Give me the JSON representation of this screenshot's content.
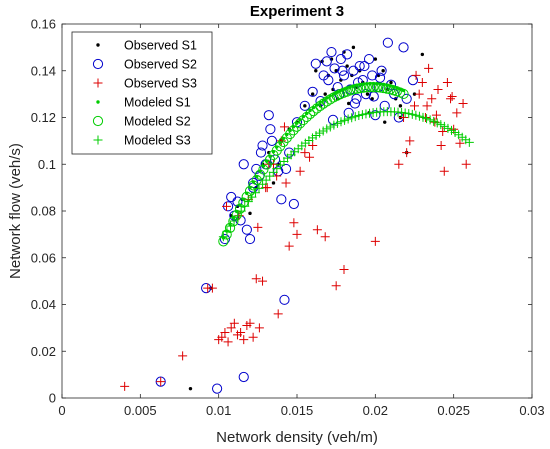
{
  "chart_data": {
    "type": "scatter",
    "title": "Experiment 3",
    "xlabel": "Network density (veh/m)",
    "ylabel": "Network flow (veh/s)",
    "xlim": [
      0,
      0.03
    ],
    "ylim": [
      0,
      0.16
    ],
    "xticks": [
      "0",
      "0.005",
      "0.01",
      "0.015",
      "0.02",
      "0.025",
      "0.03"
    ],
    "yticks": [
      "0",
      "0.02",
      "0.04",
      "0.06",
      "0.08",
      "0.1",
      "0.12",
      "0.14",
      "0.16"
    ],
    "grid": false,
    "legend_position": "top-left",
    "series": [
      {
        "name": "Observed S1",
        "marker": "dot",
        "color": "#000000",
        "x": [
          0.0082,
          0.0095,
          0.0108,
          0.0112,
          0.0115,
          0.012,
          0.0124,
          0.0128,
          0.0132,
          0.0135,
          0.0138,
          0.014,
          0.0145,
          0.015,
          0.0155,
          0.016,
          0.0162,
          0.0165,
          0.0168,
          0.017,
          0.0172,
          0.0175,
          0.0178,
          0.018,
          0.0182,
          0.0185,
          0.0188,
          0.019,
          0.0192,
          0.0195,
          0.0198,
          0.02,
          0.0202,
          0.0205,
          0.0208,
          0.021,
          0.0213,
          0.0216,
          0.022,
          0.0225,
          0.023,
          0.0186,
          0.0176,
          0.0166,
          0.0196,
          0.0206,
          0.0216,
          0.0183,
          0.0173
        ],
        "y": [
          0.004,
          0.047,
          0.078,
          0.082,
          0.085,
          0.079,
          0.09,
          0.1,
          0.105,
          0.092,
          0.1,
          0.11,
          0.115,
          0.118,
          0.125,
          0.13,
          0.14,
          0.125,
          0.13,
          0.138,
          0.145,
          0.14,
          0.136,
          0.148,
          0.142,
          0.138,
          0.133,
          0.14,
          0.135,
          0.13,
          0.128,
          0.145,
          0.138,
          0.14,
          0.132,
          0.135,
          0.128,
          0.125,
          0.105,
          0.13,
          0.147,
          0.15,
          0.128,
          0.144,
          0.122,
          0.118,
          0.12,
          0.126,
          0.132
        ]
      },
      {
        "name": "Observed S2",
        "marker": "circle",
        "color": "#0000cc",
        "x": [
          0.0063,
          0.0092,
          0.0099,
          0.0104,
          0.0106,
          0.0108,
          0.011,
          0.0112,
          0.0114,
          0.0116,
          0.0118,
          0.012,
          0.0122,
          0.0124,
          0.0126,
          0.0128,
          0.013,
          0.0132,
          0.0134,
          0.0136,
          0.0138,
          0.014,
          0.0142,
          0.0145,
          0.0148,
          0.015,
          0.0155,
          0.016,
          0.0162,
          0.0165,
          0.0167,
          0.017,
          0.0172,
          0.0174,
          0.0176,
          0.0178,
          0.018,
          0.0182,
          0.0184,
          0.0186,
          0.0188,
          0.019,
          0.0192,
          0.0194,
          0.0196,
          0.0198,
          0.02,
          0.0202,
          0.0204,
          0.0206,
          0.0208,
          0.021,
          0.0212,
          0.0215,
          0.0218,
          0.022,
          0.0224,
          0.0116,
          0.0122,
          0.0143,
          0.0133,
          0.0127,
          0.0177,
          0.0183,
          0.0193,
          0.0187,
          0.0173,
          0.0169,
          0.0179,
          0.0189,
          0.0199,
          0.0203
        ],
        "y": [
          0.007,
          0.047,
          0.004,
          0.068,
          0.082,
          0.086,
          0.078,
          0.084,
          0.076,
          0.009,
          0.072,
          0.068,
          0.09,
          0.098,
          0.095,
          0.108,
          0.1,
          0.121,
          0.11,
          0.102,
          0.097,
          0.085,
          0.042,
          0.105,
          0.083,
          0.118,
          0.125,
          0.131,
          0.143,
          0.127,
          0.138,
          0.136,
          0.148,
          0.141,
          0.133,
          0.145,
          0.138,
          0.147,
          0.132,
          0.14,
          0.128,
          0.142,
          0.136,
          0.13,
          0.145,
          0.138,
          0.121,
          0.133,
          0.14,
          0.125,
          0.152,
          0.134,
          0.13,
          0.12,
          0.15,
          0.128,
          0.136,
          0.1,
          0.092,
          0.098,
          0.115,
          0.105,
          0.13,
          0.122,
          0.142,
          0.126,
          0.119,
          0.144,
          0.14,
          0.135,
          0.129,
          0.137
        ]
      },
      {
        "name": "Observed S3",
        "marker": "plus",
        "color": "#dd0000",
        "x": [
          0.004,
          0.0063,
          0.0077,
          0.0093,
          0.0096,
          0.01,
          0.0102,
          0.0104,
          0.0106,
          0.0108,
          0.011,
          0.0112,
          0.0114,
          0.0116,
          0.0118,
          0.012,
          0.0122,
          0.0124,
          0.0126,
          0.0128,
          0.013,
          0.0132,
          0.0135,
          0.0138,
          0.014,
          0.0142,
          0.0145,
          0.0148,
          0.015,
          0.0155,
          0.016,
          0.0163,
          0.0168,
          0.0175,
          0.018,
          0.02,
          0.0215,
          0.0218,
          0.022,
          0.0222,
          0.0225,
          0.0228,
          0.023,
          0.0232,
          0.0234,
          0.0236,
          0.0238,
          0.024,
          0.0242,
          0.0244,
          0.0246,
          0.0248,
          0.025,
          0.0252,
          0.0254,
          0.0256,
          0.0258,
          0.0226,
          0.0233,
          0.0243,
          0.0249,
          0.0239,
          0.0105,
          0.0113,
          0.0119,
          0.0125,
          0.0131,
          0.0137,
          0.0143,
          0.0152,
          0.0158
        ],
        "y": [
          0.005,
          0.007,
          0.018,
          0.047,
          0.047,
          0.025,
          0.026,
          0.028,
          0.024,
          0.03,
          0.032,
          0.027,
          0.028,
          0.025,
          0.031,
          0.032,
          0.026,
          0.051,
          0.03,
          0.05,
          0.09,
          0.1,
          0.1,
          0.036,
          0.11,
          0.116,
          0.065,
          0.075,
          0.07,
          0.105,
          0.108,
          0.072,
          0.069,
          0.048,
          0.055,
          0.067,
          0.1,
          0.12,
          0.105,
          0.11,
          0.125,
          0.13,
          0.135,
          0.12,
          0.141,
          0.128,
          0.118,
          0.132,
          0.108,
          0.097,
          0.135,
          0.128,
          0.115,
          0.122,
          0.109,
          0.126,
          0.1,
          0.138,
          0.125,
          0.114,
          0.129,
          0.121,
          0.082,
          0.078,
          0.085,
          0.073,
          0.09,
          0.095,
          0.092,
          0.097,
          0.103
        ]
      },
      {
        "name": "Modeled S1",
        "marker": "dot",
        "color": "#00cc00",
        "curve": {
          "x0": 0.0103,
          "x1": 0.0218,
          "peak_x": 0.0198,
          "peak_y": 0.1345,
          "y0": 0.0685,
          "n": 55
        }
      },
      {
        "name": "Modeled S2",
        "marker": "circle",
        "color": "#00cc00",
        "curve": {
          "x0": 0.0103,
          "x1": 0.0218,
          "peak_x": 0.0198,
          "peak_y": 0.133,
          "y0": 0.067,
          "n": 55
        }
      },
      {
        "name": "Modeled S3",
        "marker": "plus",
        "color": "#00cc00",
        "curve": {
          "x0": 0.0103,
          "x1": 0.026,
          "peak_x": 0.0208,
          "peak_y": 0.1225,
          "y0": 0.069,
          "n": 70
        }
      }
    ]
  }
}
